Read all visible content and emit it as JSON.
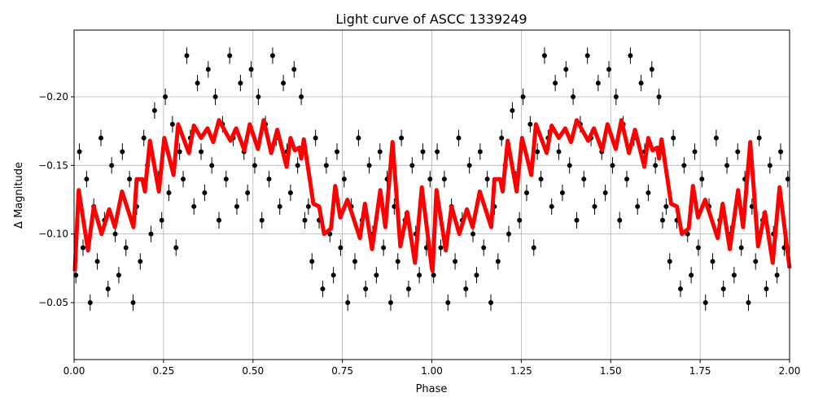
{
  "chart_data": {
    "type": "scatter",
    "title": "Light curve of ASCC 1339249",
    "xlabel": "Phase",
    "ylabel": "Δ Magnitude",
    "xlim": [
      0,
      2
    ],
    "ylim": [
      -0.0085,
      -0.2486
    ],
    "y_inverted": true,
    "grid": true,
    "legend": "none",
    "x_ticks": [
      "0.00",
      "0.25",
      "0.50",
      "0.75",
      "1.00",
      "1.25",
      "1.50",
      "1.75",
      "2.00"
    ],
    "x_tick_values": [
      0,
      0.25,
      0.5,
      0.75,
      1,
      1.25,
      1.5,
      1.75,
      2
    ],
    "y_ticks": [
      "−0.20",
      "−0.15",
      "−0.10",
      "−0.05"
    ],
    "y_tick_values": [
      -0.2,
      -0.15,
      -0.1,
      -0.05
    ],
    "colors": {
      "points": "#000000",
      "model": "#ff0000",
      "grid": "#b0b0b0"
    },
    "observations": {
      "phase_repeated_cycles": 2,
      "yerr": 0.006,
      "phase": [
        0.005,
        0.015,
        0.025,
        0.035,
        0.045,
        0.055,
        0.065,
        0.075,
        0.085,
        0.095,
        0.105,
        0.115,
        0.125,
        0.135,
        0.145,
        0.155,
        0.165,
        0.175,
        0.185,
        0.195,
        0.205,
        0.215,
        0.225,
        0.235,
        0.245,
        0.255,
        0.265,
        0.275,
        0.285,
        0.295,
        0.305,
        0.315,
        0.325,
        0.335,
        0.345,
        0.355,
        0.365,
        0.375,
        0.385,
        0.395,
        0.405,
        0.415,
        0.425,
        0.435,
        0.445,
        0.455,
        0.465,
        0.475,
        0.485,
        0.495,
        0.505,
        0.515,
        0.525,
        0.535,
        0.545,
        0.555,
        0.565,
        0.575,
        0.585,
        0.595,
        0.605,
        0.615,
        0.625,
        0.635,
        0.645,
        0.655,
        0.665,
        0.675,
        0.685,
        0.695,
        0.705,
        0.715,
        0.725,
        0.735,
        0.745,
        0.755,
        0.765,
        0.775,
        0.785,
        0.795,
        0.805,
        0.815,
        0.825,
        0.835,
        0.845,
        0.855,
        0.865,
        0.875,
        0.885,
        0.895,
        0.905,
        0.915,
        0.925,
        0.935,
        0.945,
        0.955,
        0.965,
        0.975,
        0.985,
        0.995
      ],
      "dmag": [
        -0.07,
        -0.16,
        -0.09,
        -0.14,
        -0.05,
        -0.12,
        -0.08,
        -0.17,
        -0.11,
        -0.06,
        -0.15,
        -0.1,
        -0.07,
        -0.16,
        -0.09,
        -0.14,
        -0.05,
        -0.12,
        -0.08,
        -0.17,
        -0.15,
        -0.1,
        -0.19,
        -0.14,
        -0.11,
        -0.2,
        -0.13,
        -0.18,
        -0.09,
        -0.16,
        -0.14,
        -0.23,
        -0.17,
        -0.12,
        -0.21,
        -0.16,
        -0.13,
        -0.22,
        -0.15,
        -0.2,
        -0.11,
        -0.18,
        -0.14,
        -0.23,
        -0.17,
        -0.12,
        -0.21,
        -0.16,
        -0.13,
        -0.22,
        -0.15,
        -0.2,
        -0.11,
        -0.18,
        -0.14,
        -0.23,
        -0.17,
        -0.12,
        -0.21,
        -0.16,
        -0.13,
        -0.22,
        -0.15,
        -0.2,
        -0.11,
        -0.12,
        -0.08,
        -0.17,
        -0.11,
        -0.06,
        -0.15,
        -0.1,
        -0.07,
        -0.16,
        -0.09,
        -0.14,
        -0.05,
        -0.12,
        -0.08,
        -0.17,
        -0.11,
        -0.06,
        -0.15,
        -0.1,
        -0.07,
        -0.16,
        -0.09,
        -0.14,
        -0.05,
        -0.12,
        -0.08,
        -0.17,
        -0.11,
        -0.06,
        -0.15,
        -0.1,
        -0.07,
        -0.16,
        -0.09,
        -0.14
      ]
    },
    "model": {
      "phase": [
        0.002,
        0.013,
        0.039,
        0.055,
        0.077,
        0.098,
        0.114,
        0.134,
        0.166,
        0.175,
        0.191,
        0.198,
        0.212,
        0.237,
        0.252,
        0.262,
        0.278,
        0.291,
        0.321,
        0.335,
        0.355,
        0.373,
        0.389,
        0.405,
        0.437,
        0.453,
        0.476,
        0.491,
        0.514,
        0.53,
        0.551,
        0.568,
        0.594,
        0.605,
        0.617,
        0.63,
        0.635,
        0.642,
        0.669,
        0.685,
        0.699,
        0.718,
        0.73,
        0.744,
        0.764,
        0.799,
        0.813,
        0.833,
        0.856,
        0.87,
        0.89,
        0.912,
        0.931,
        0.953,
        0.972,
        1.0
      ],
      "dmag": [
        -0.073,
        -0.132,
        -0.088,
        -0.12,
        -0.1,
        -0.118,
        -0.105,
        -0.131,
        -0.105,
        -0.14,
        -0.14,
        -0.131,
        -0.168,
        -0.131,
        -0.17,
        -0.16,
        -0.143,
        -0.18,
        -0.159,
        -0.179,
        -0.17,
        -0.177,
        -0.167,
        -0.183,
        -0.168,
        -0.177,
        -0.161,
        -0.18,
        -0.162,
        -0.183,
        -0.159,
        -0.176,
        -0.149,
        -0.17,
        -0.161,
        -0.163,
        -0.155,
        -0.169,
        -0.122,
        -0.12,
        -0.1,
        -0.104,
        -0.135,
        -0.112,
        -0.125,
        -0.097,
        -0.122,
        -0.089,
        -0.132,
        -0.105,
        -0.167,
        -0.091,
        -0.116,
        -0.079,
        -0.134,
        -0.075
      ]
    }
  }
}
